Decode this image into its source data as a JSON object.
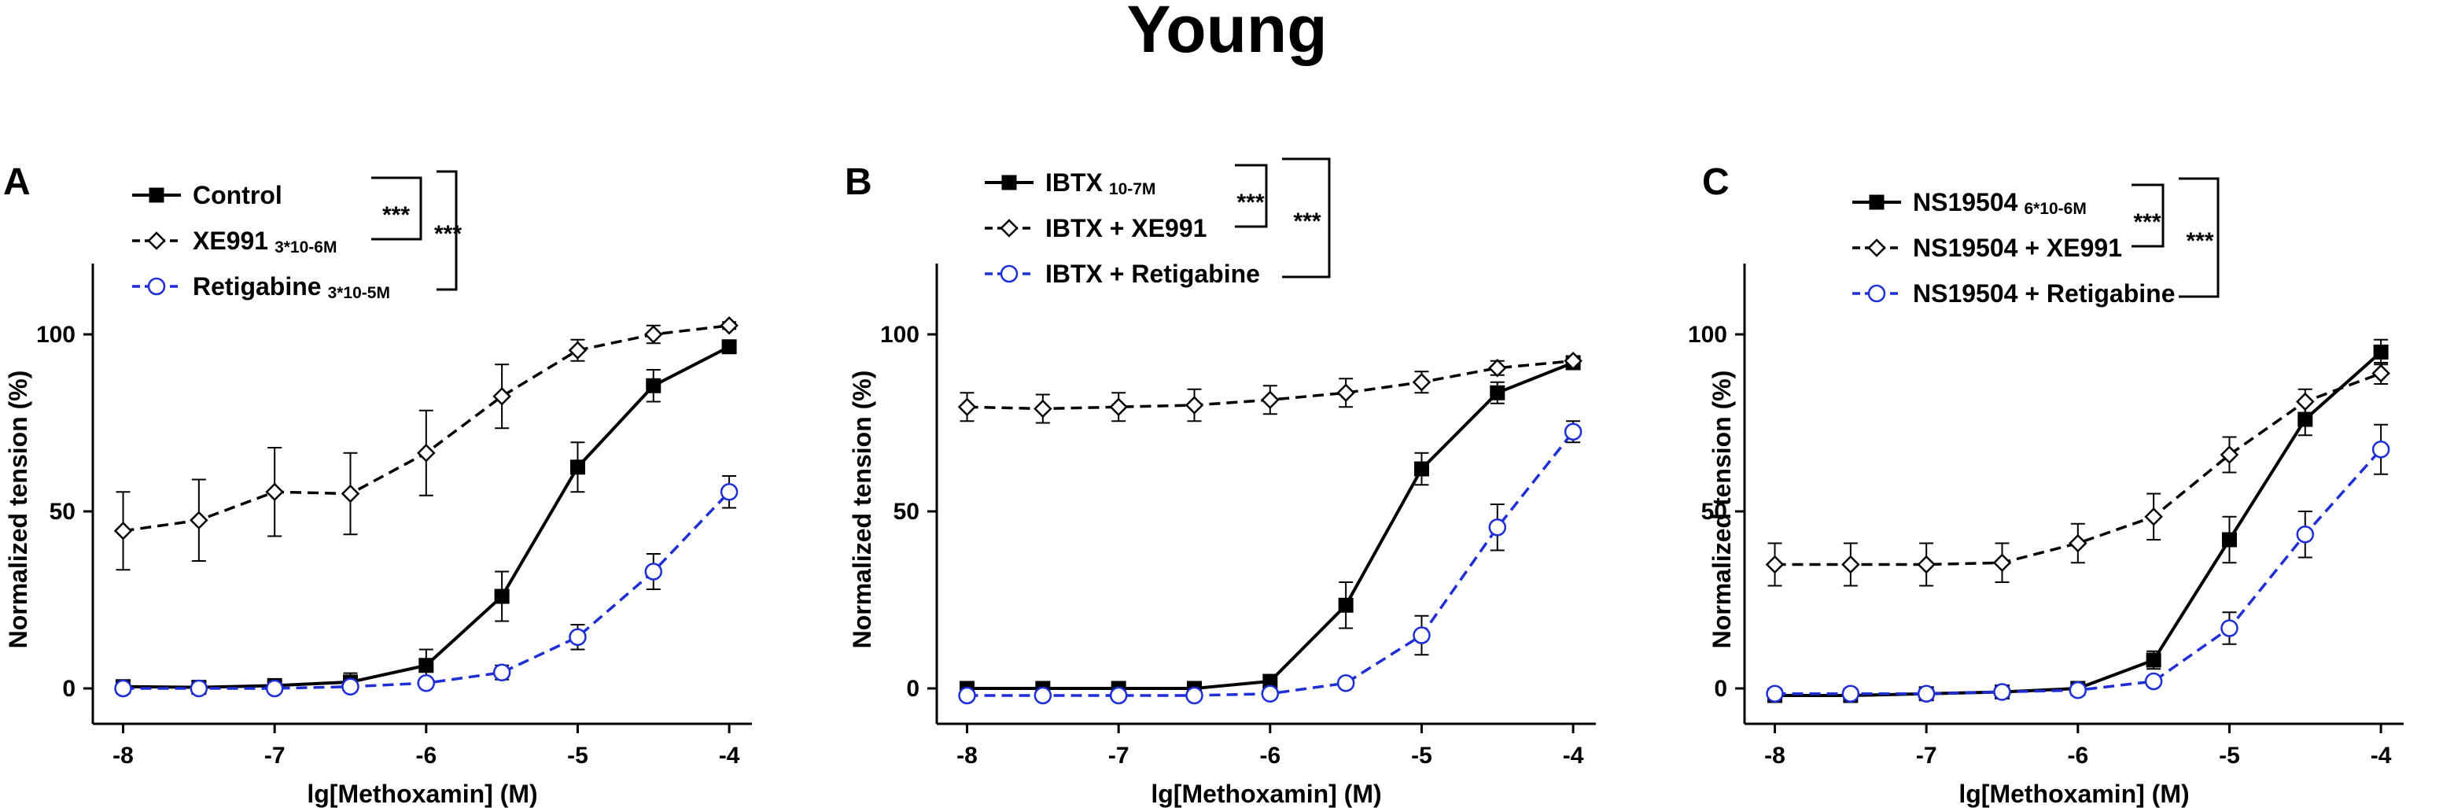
{
  "figure_title": "Young",
  "colors": {
    "black": "#000000",
    "blue": "#1f2fd6"
  },
  "chart_data": [
    {
      "type": "line",
      "panel_label": "A",
      "xlabel": "lg[Methoxamin] (M)",
      "ylabel": "Normalized tension (%)",
      "xlim": [
        -8.2,
        -3.85
      ],
      "ylim": [
        -10,
        120
      ],
      "xticks": [
        -8,
        -7,
        -6,
        -5,
        -4
      ],
      "xtick_labels": [
        "-8",
        "-7",
        "-6",
        "-5",
        "-4"
      ],
      "yticks": [
        0,
        50,
        100
      ],
      "ytick_labels": [
        "0",
        "50",
        "100"
      ],
      "x": [
        -8,
        -7.5,
        -7,
        -6.5,
        -6,
        -5.5,
        -5,
        -4.5,
        -4
      ],
      "series": [
        {
          "name": "Control",
          "name_sub": "",
          "marker": "square",
          "line": "solid",
          "color": "#000000",
          "values": [
            0.5,
            0.3,
            0.8,
            1.8,
            6.5,
            26,
            62.5,
            85.5,
            96.5
          ],
          "errors": [
            0.8,
            0.8,
            1.5,
            2.5,
            4.5,
            7,
            7,
            4.5,
            1
          ]
        },
        {
          "name": "XE991",
          "name_sub": "3*10-6M",
          "marker": "diamond",
          "line": "dashed",
          "color": "#000000",
          "values": [
            44.5,
            47.5,
            55.5,
            55,
            66.5,
            82.5,
            95.5,
            100,
            102.5
          ],
          "errors": [
            11,
            11.5,
            12.5,
            11.5,
            12,
            9,
            3,
            2.5,
            1
          ]
        },
        {
          "name": "Retigabine",
          "name_sub": "3*10-5M",
          "marker": "circle",
          "line": "dashed",
          "color": "#1f2fd6",
          "values": [
            0,
            0,
            0,
            0.5,
            1.5,
            4.5,
            14.5,
            33,
            55.5
          ],
          "errors": [
            0.5,
            0.5,
            0.5,
            0.8,
            1,
            2,
            3.5,
            5,
            4.5
          ]
        }
      ],
      "significance": [
        {
          "label": "***",
          "between": [
            "Control",
            "XE991"
          ]
        },
        {
          "label": "***",
          "between": [
            "Control",
            "Retigabine"
          ]
        }
      ]
    },
    {
      "type": "line",
      "panel_label": "B",
      "xlabel": "lg[Methoxamin] (M)",
      "ylabel": "Normalized tension (%)",
      "xlim": [
        -8.2,
        -3.85
      ],
      "ylim": [
        -10,
        120
      ],
      "xticks": [
        -8,
        -7,
        -6,
        -5,
        -4
      ],
      "xtick_labels": [
        "-8",
        "-7",
        "-6",
        "-5",
        "-4"
      ],
      "yticks": [
        0,
        50,
        100
      ],
      "ytick_labels": [
        "0",
        "50",
        "100"
      ],
      "x": [
        -8,
        -7.5,
        -7,
        -6.5,
        -6,
        -5.5,
        -5,
        -4.5,
        -4
      ],
      "series": [
        {
          "name": "IBTX",
          "name_sub": "10-7M",
          "marker": "square",
          "line": "solid",
          "color": "#000000",
          "values": [
            0,
            0,
            0,
            0,
            2,
            23.5,
            62,
            83.5,
            92
          ],
          "errors": [
            1,
            1,
            1,
            1,
            1.5,
            6.5,
            4.5,
            3,
            1.5
          ]
        },
        {
          "name": "IBTX + XE991",
          "name_sub": "",
          "marker": "diamond",
          "line": "dashed",
          "color": "#000000",
          "values": [
            79.5,
            79,
            79.5,
            80,
            81.5,
            83.5,
            86.5,
            90.5,
            92.5
          ],
          "errors": [
            4,
            4,
            4,
            4.5,
            4,
            4,
            3,
            2,
            1
          ]
        },
        {
          "name": "IBTX + Retigabine",
          "name_sub": "",
          "marker": "circle",
          "line": "dashed",
          "color": "#1f2fd6",
          "values": [
            -2,
            -2,
            -2,
            -2,
            -1.5,
            1.5,
            15,
            45.5,
            72.5
          ],
          "errors": [
            0.5,
            0.5,
            0.5,
            0.5,
            0.5,
            1,
            5.5,
            6.5,
            3
          ]
        }
      ],
      "significance": [
        {
          "label": "***",
          "between": [
            "IBTX",
            "IBTX + XE991"
          ]
        },
        {
          "label": "***",
          "between": [
            "IBTX",
            "IBTX + Retigabine"
          ]
        }
      ]
    },
    {
      "type": "line",
      "panel_label": "C",
      "xlabel": "lg[Methoxamin] (M)",
      "ylabel": "Normalized tension (%)",
      "xlim": [
        -8.2,
        -3.85
      ],
      "ylim": [
        -10,
        120
      ],
      "xticks": [
        -8,
        -7,
        -6,
        -5,
        -4
      ],
      "xtick_labels": [
        "-8",
        "-7",
        "-6",
        "-5",
        "-4"
      ],
      "yticks": [
        0,
        50,
        100
      ],
      "ytick_labels": [
        "0",
        "50",
        "100"
      ],
      "x": [
        -8,
        -7.5,
        -7,
        -6.5,
        -6,
        -5.5,
        -5,
        -4.5,
        -4
      ],
      "series": [
        {
          "name": "NS19504",
          "name_sub": "6*10-6M",
          "marker": "square",
          "line": "solid",
          "color": "#000000",
          "values": [
            -2,
            -2,
            -1.5,
            -1,
            0,
            8,
            42,
            76,
            95
          ],
          "errors": [
            1,
            1,
            1,
            1,
            1,
            2.5,
            6.5,
            4.5,
            3.5
          ]
        },
        {
          "name": "NS19504 + XE991",
          "name_sub": "",
          "marker": "diamond",
          "line": "dashed",
          "color": "#000000",
          "values": [
            35,
            35,
            35,
            35.5,
            41,
            48.5,
            66,
            81,
            89
          ],
          "errors": [
            6,
            6,
            6,
            5.5,
            5.5,
            6.5,
            5,
            3.5,
            3
          ]
        },
        {
          "name": "NS19504 + Retigabine",
          "name_sub": "",
          "marker": "circle",
          "line": "dashed",
          "color": "#1f2fd6",
          "values": [
            -1.5,
            -1.5,
            -1.5,
            -1,
            -0.5,
            2,
            17,
            43.5,
            67.5
          ],
          "errors": [
            0.5,
            0.5,
            0.5,
            0.5,
            0.5,
            1,
            4.5,
            6.5,
            7
          ]
        }
      ],
      "significance": [
        {
          "label": "***",
          "between": [
            "NS19504",
            "NS19504 + XE991"
          ]
        },
        {
          "label": "***",
          "between": [
            "NS19504",
            "NS19504 + Retigabine"
          ]
        }
      ]
    }
  ]
}
